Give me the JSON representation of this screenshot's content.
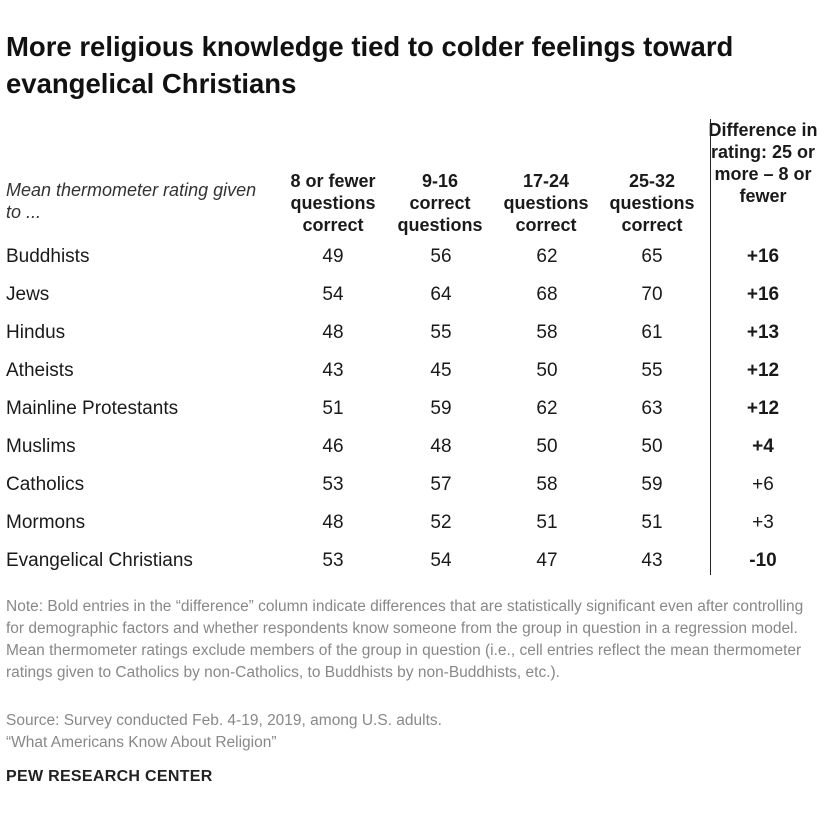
{
  "title": "More religious knowledge tied to colder feelings toward evangelical Christians",
  "row_header": "Mean thermometer rating given to ...",
  "columns": [
    "8 or fewer questions correct",
    "9-16 correct questions",
    "17-24 questions correct",
    "25-32 questions correct"
  ],
  "diff_header": "Difference in rating: 25 or more – 8 or fewer",
  "chart_data": {
    "type": "table",
    "title": "More religious knowledge tied to colder feelings toward evangelical Christians",
    "columns": [
      "8 or fewer questions correct",
      "9-16 correct questions",
      "17-24 questions correct",
      "25-32 questions correct",
      "Difference in rating: 25 or more – 8 or fewer"
    ],
    "rows": [
      {
        "label": "Buddhists",
        "values": [
          "49",
          "56",
          "62",
          "65"
        ],
        "diff": "+16",
        "significant": true
      },
      {
        "label": "Jews",
        "values": [
          "54",
          "64",
          "68",
          "70"
        ],
        "diff": "+16",
        "significant": true
      },
      {
        "label": "Hindus",
        "values": [
          "48",
          "55",
          "58",
          "61"
        ],
        "diff": "+13",
        "significant": true
      },
      {
        "label": "Atheists",
        "values": [
          "43",
          "45",
          "50",
          "55"
        ],
        "diff": "+12",
        "significant": true
      },
      {
        "label": "Mainline Protestants",
        "values": [
          "51",
          "59",
          "62",
          "63"
        ],
        "diff": "+12",
        "significant": true
      },
      {
        "label": "Muslims",
        "values": [
          "46",
          "48",
          "50",
          "50"
        ],
        "diff": "+4",
        "significant": true
      },
      {
        "label": "Catholics",
        "values": [
          "53",
          "57",
          "58",
          "59"
        ],
        "diff": "+6",
        "significant": false
      },
      {
        "label": "Mormons",
        "values": [
          "48",
          "52",
          "51",
          "51"
        ],
        "diff": "+3",
        "significant": false
      },
      {
        "label": "Evangelical Christians",
        "values": [
          "53",
          "54",
          "47",
          "43"
        ],
        "diff": "-10",
        "significant": true
      }
    ]
  },
  "note": "Note: Bold entries in the “difference” column indicate differences that are statistically significant even after controlling for demographic factors and whether respondents know someone from the group in question in a regression model. Mean thermometer ratings exclude members of the group in question (i.e., cell entries reflect the mean thermometer ratings given to Catholics by non-Catholics, to Buddhists by non-Buddhists, etc.).",
  "source": "Source: Survey conducted Feb. 4-19, 2019, among U.S. adults.",
  "report": "“What Americans Know About Religion”",
  "brand": "PEW RESEARCH CENTER"
}
